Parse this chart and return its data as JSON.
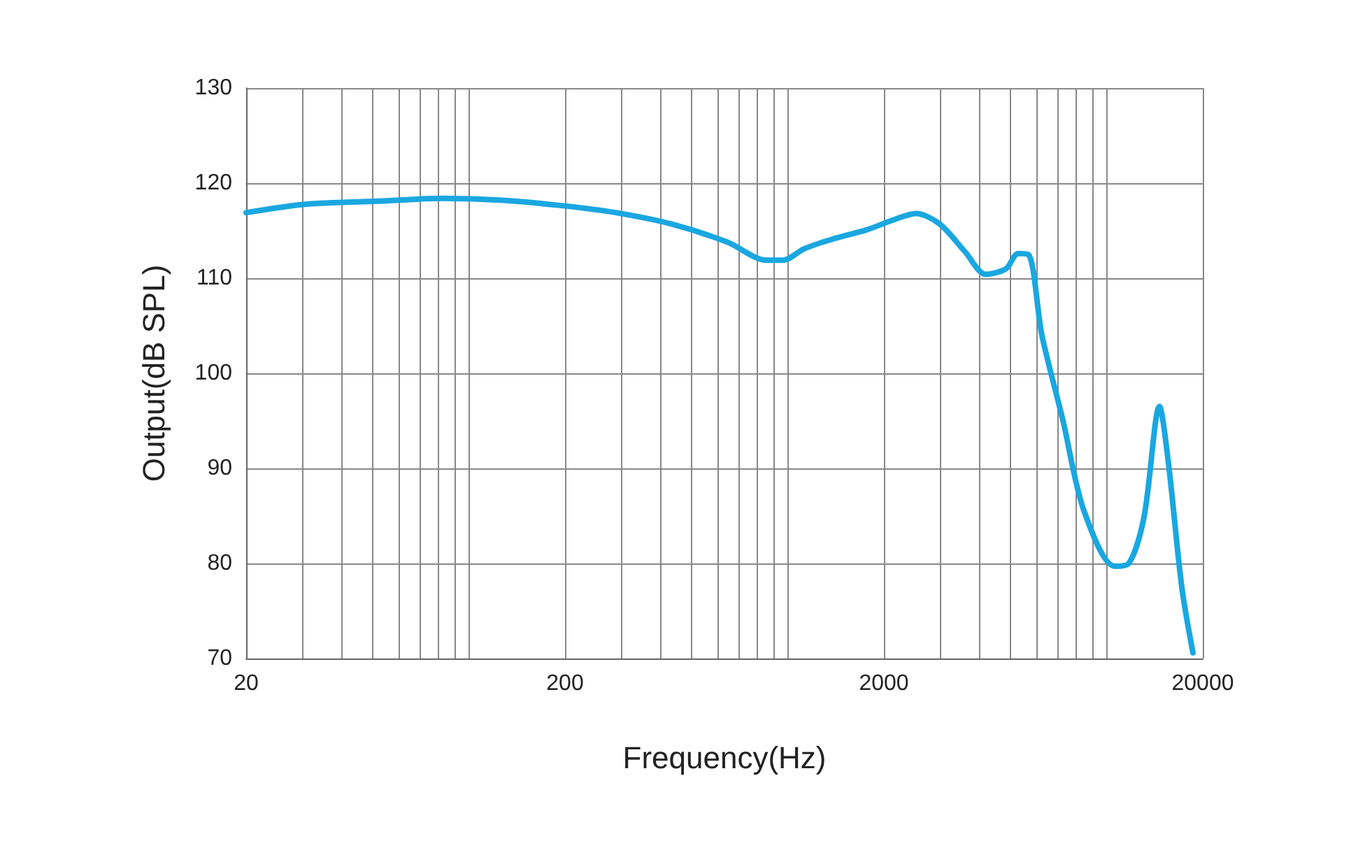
{
  "chart_data": {
    "type": "line",
    "xlabel": "Frequency(Hz)",
    "ylabel": "Output(dB SPL)",
    "log": "x",
    "grid": true,
    "marker": "none",
    "line_style": "solid",
    "xlim": [
      20,
      20000
    ],
    "ylim": [
      70,
      130
    ],
    "xticks": [
      20,
      {
        "value": 30,
        "label": null
      },
      {
        "value": 40,
        "label": null
      },
      {
        "value": 50,
        "label": null
      },
      {
        "value": 60,
        "label": null
      },
      {
        "value": 70,
        "label": null
      },
      {
        "value": 80,
        "label": null
      },
      {
        "value": 90,
        "label": null
      },
      {
        "value": 100,
        "label": null
      },
      200,
      {
        "value": 300,
        "label": null
      },
      {
        "value": 400,
        "label": null
      },
      {
        "value": 500,
        "label": null
      },
      {
        "value": 600,
        "label": null
      },
      {
        "value": 700,
        "label": null
      },
      {
        "value": 800,
        "label": null
      },
      {
        "value": 900,
        "label": null
      },
      {
        "value": 1000,
        "label": null
      },
      2000,
      {
        "value": 3000,
        "label": null
      },
      {
        "value": 4000,
        "label": null
      },
      {
        "value": 5000,
        "label": null
      },
      {
        "value": 6000,
        "label": null
      },
      {
        "value": 7000,
        "label": null
      },
      {
        "value": 8000,
        "label": null
      },
      {
        "value": 9000,
        "label": null
      },
      {
        "value": 10000,
        "label": null
      },
      20000
    ],
    "yticks": [
      70,
      80,
      90,
      100,
      110,
      120,
      130
    ],
    "series": [
      {
        "color": "#1aa7e0",
        "x": [
          20,
          31,
          52,
          82,
          128,
          200,
          288,
          431,
          645,
          857,
          966,
          1125,
          1377,
          1770,
          2168,
          2523,
          2993,
          3590,
          4177,
          4830,
          5270,
          5680,
          6260,
          7280,
          8470,
          10590,
          11720,
          13090,
          14630,
          15590,
          17190,
          18630
        ],
        "values": [
          116.9,
          117.8,
          118.1,
          118.4,
          118.2,
          117.6,
          116.9,
          115.7,
          113.8,
          111.9,
          111.9,
          113.1,
          114.1,
          115.1,
          116.2,
          116.8,
          115.7,
          112.8,
          110.4,
          111.0,
          112.6,
          112.5,
          104.0,
          95.1,
          85.6,
          79.7,
          80.0,
          84.9,
          96.5,
          90.7,
          77.5,
          70.6
        ]
      }
    ]
  }
}
